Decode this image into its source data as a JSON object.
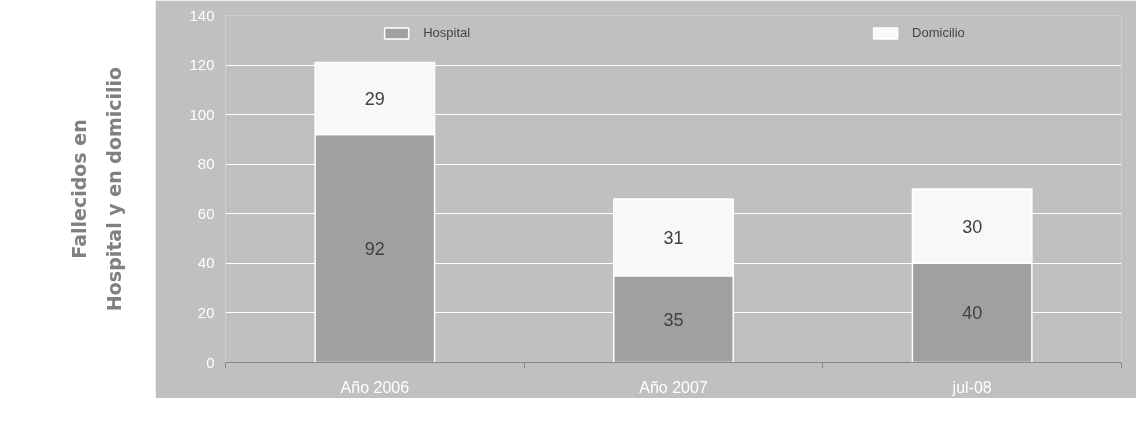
{
  "chart_data": {
    "type": "bar",
    "ylabel": "Fallecidos en\nHospital y en domicilio",
    "categories": [
      "Año 2006",
      "Año 2007",
      "jul-08"
    ],
    "stacked": true,
    "series": [
      {
        "name": "Hospital",
        "color": "#a0a0a0",
        "values": [
          92,
          35,
          40
        ]
      },
      {
        "name": "Domicilio",
        "color": "#f8f8f8",
        "values": [
          29,
          31,
          30
        ]
      }
    ],
    "ylim": [
      0,
      140
    ],
    "yticks": [
      0,
      20,
      40,
      60,
      80,
      100,
      120,
      140
    ],
    "grid": "y",
    "legend": "top",
    "data_labels": true
  }
}
